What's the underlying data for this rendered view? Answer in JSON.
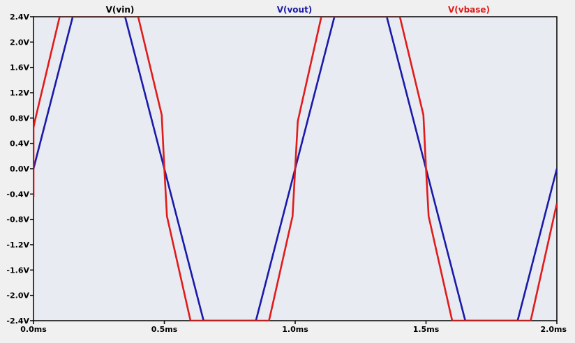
{
  "chart_data": {
    "type": "line",
    "title": "",
    "xlabel": "",
    "ylabel": "",
    "xlim": [
      0,
      2.0
    ],
    "ylim": [
      -2.4,
      2.4
    ],
    "x_ticks": [
      0,
      0.5,
      1.0,
      1.5,
      2.0
    ],
    "x_tick_labels": [
      "0.0ms",
      "0.5ms",
      "1.0ms",
      "1.5ms",
      "2.0ms"
    ],
    "y_ticks": [
      2.4,
      2.0,
      1.6,
      1.2,
      0.8,
      0.4,
      0.0,
      -0.4,
      -0.8,
      -1.2,
      -1.6,
      -2.0,
      -2.4
    ],
    "y_tick_labels": [
      "2.4V",
      "2.0V",
      "1.6V",
      "1.2V",
      "0.8V",
      "0.4V",
      "0.0V",
      "-0.4V",
      "-0.8V",
      "-1.2V",
      "-1.6V",
      "-2.0V",
      "-2.4V"
    ],
    "grid": false,
    "legend": [
      {
        "name": "V(vin)",
        "color": "#000000"
      },
      {
        "name": "V(vout)",
        "color": "#1a1aa8"
      },
      {
        "name": "V(vbase)",
        "color": "#e01b1b"
      }
    ],
    "series": [
      {
        "name": "V(vout)",
        "color": "#1a1aa8",
        "x": [
          0.0,
          0.15,
          0.35,
          0.65,
          0.85,
          1.15,
          1.35,
          1.65,
          1.85,
          2.0
        ],
        "y": [
          0.0,
          2.4,
          2.4,
          -2.4,
          -2.4,
          2.4,
          2.4,
          -2.4,
          -2.4,
          0.0
        ]
      },
      {
        "name": "V(vbase)",
        "color": "#e01b1b",
        "x": [
          0.0,
          0.0,
          0.005,
          0.1,
          0.4,
          0.49,
          0.5,
          0.51,
          0.6,
          0.9,
          0.99,
          1.0,
          1.01,
          1.1,
          1.4,
          1.49,
          1.5,
          1.51,
          1.6,
          1.9,
          2.0
        ],
        "y": [
          -0.45,
          0.65,
          0.75,
          2.4,
          2.4,
          0.85,
          0.0,
          -0.75,
          -2.4,
          -2.4,
          -0.75,
          0.0,
          0.75,
          2.4,
          2.4,
          0.85,
          0.0,
          -0.75,
          -2.4,
          -2.4,
          -0.55
        ]
      }
    ]
  }
}
